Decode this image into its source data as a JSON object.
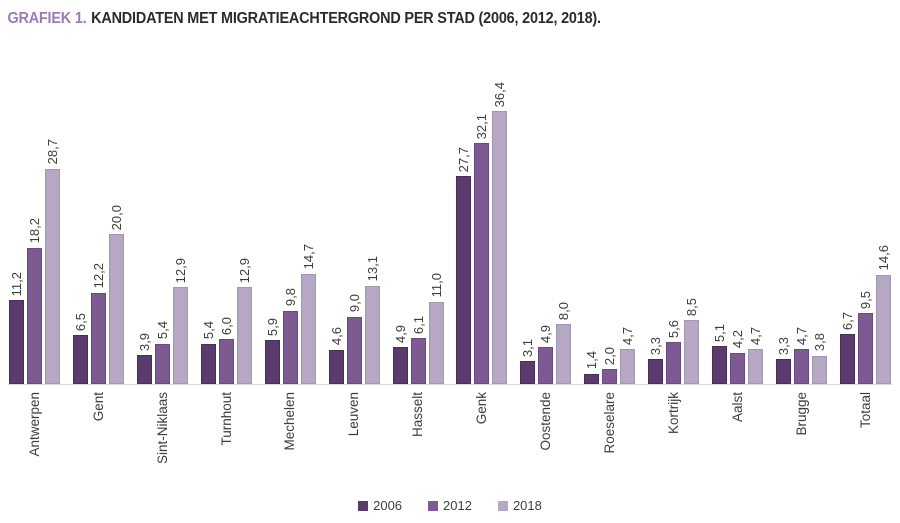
{
  "title": {
    "prefix": "GRAFIEK 1.",
    "text": "KANDIDATEN MET MIGRATIEACHTERGROND PER STAD (2006, 2012, 2018)."
  },
  "colors": {
    "title_accent": "#9c7ab8",
    "title_text": "#2b2b2b",
    "axis_line": "#d8d8d8",
    "label_text": "#3d3d3d",
    "series_2006": "#5b3a6e",
    "series_2012": "#7d5a94",
    "series_2018": "#b5a8c4"
  },
  "legend": {
    "items": [
      {
        "label": "2006",
        "color": "#5b3a6e"
      },
      {
        "label": "2012",
        "color": "#7d5a94"
      },
      {
        "label": "2018",
        "color": "#b5a8c4"
      }
    ]
  },
  "chart_data": {
    "type": "bar",
    "title": "GRAFIEK 1. KANDIDATEN MET MIGRATIEACHTERGROND PER STAD (2006, 2012, 2018).",
    "xlabel": "",
    "ylabel": "",
    "ylim": [
      0,
      38
    ],
    "grid": false,
    "legend_position": "bottom",
    "bar_value_labels_rotated": true,
    "categories": [
      "Antwerpen",
      "Gent",
      "Sint-Niklaas",
      "Turnhout",
      "Mechelen",
      "Leuven",
      "Hasselt",
      "Genk",
      "Oostende",
      "Roeselare",
      "Kortrijk",
      "Aalst",
      "Brugge",
      "Totaal"
    ],
    "series": [
      {
        "name": "2006",
        "color": "#5b3a6e",
        "border": "#4a2e59",
        "values": [
          11.2,
          6.5,
          3.9,
          5.4,
          5.9,
          4.6,
          4.9,
          27.7,
          3.1,
          1.4,
          3.3,
          5.1,
          3.3,
          6.7
        ],
        "labels": [
          "11,2",
          "6,5",
          "3,9",
          "5,4",
          "5,9",
          "4,6",
          "4,9",
          "27,7",
          "3,1",
          "1,4",
          "3,3",
          "5,1",
          "3,3",
          "6,7"
        ]
      },
      {
        "name": "2012",
        "color": "#7d5a94",
        "border": "#6a4a80",
        "values": [
          18.2,
          12.2,
          5.4,
          6.0,
          9.8,
          9.0,
          6.1,
          32.1,
          4.9,
          2.0,
          5.6,
          4.2,
          4.7,
          9.5
        ],
        "labels": [
          "18,2",
          "12,2",
          "5,4",
          "6,0",
          "9,8",
          "9,0",
          "6,1",
          "32,1",
          "4,9",
          "2,0",
          "5,6",
          "4,2",
          "4,7",
          "9,5"
        ]
      },
      {
        "name": "2018",
        "color": "#b5a8c4",
        "border": "#a395b3",
        "values": [
          28.7,
          20.0,
          12.9,
          12.9,
          14.7,
          13.1,
          11.0,
          36.4,
          8.0,
          4.7,
          8.5,
          4.7,
          3.8,
          14.6
        ],
        "labels": [
          "28,7",
          "20,0",
          "12,9",
          "12,9",
          "14,7",
          "13,1",
          "11,0",
          "36,4",
          "8,0",
          "4,7",
          "8,5",
          "4,7",
          "3,8",
          "14,6"
        ]
      }
    ]
  }
}
